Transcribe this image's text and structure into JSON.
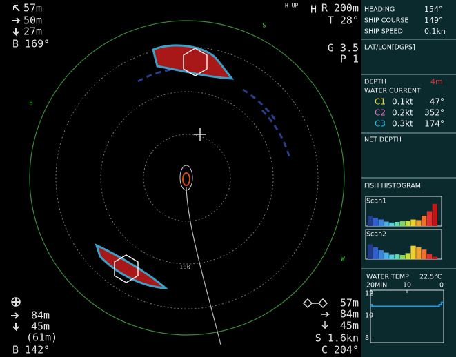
{
  "sonar": {
    "top_left": [
      "57m",
      "50m",
      "27m",
      "B 169°"
    ],
    "mode": "H-UP",
    "heading_mark": "H",
    "top_right": [
      "R 200m",
      "T 28°",
      "G 3.5",
      "P 1"
    ],
    "ring_labels": [
      "S",
      "E",
      "W",
      "100"
    ],
    "bottom_left": [
      "84m",
      "45m",
      "(61m)",
      "B 142°"
    ],
    "bottom_right": [
      "57m",
      "84m",
      "45m",
      "S 1.6kn",
      "C 204°"
    ]
  },
  "panel": {
    "ship": [
      {
        "label": "HEADING",
        "value": "154°"
      },
      {
        "label": "SHIP COURSE",
        "value": "149°"
      },
      {
        "label": "SHIP SPEED",
        "value": "0.1kn"
      }
    ],
    "position_label": "LAT/LON[DGPS]",
    "depth": {
      "label": "DEPTH",
      "value": "4m",
      "color": "#e03030"
    },
    "current_label": "WATER CURRENT",
    "currents": [
      {
        "name": "C1",
        "speed": "0.1kt",
        "direction": "47°",
        "color": "#e8d830"
      },
      {
        "name": "C2",
        "speed": "0.2kt",
        "direction": "352°",
        "color": "#e070c0"
      },
      {
        "name": "C3",
        "speed": "0.3kt",
        "direction": "174°",
        "color": "#30b8e0"
      }
    ],
    "net_depth_label": "NET DEPTH",
    "histogram": {
      "title": "FISH HISTOGRAM",
      "ylim": [
        0,
        1
      ],
      "colors": [
        "#223a8c",
        "#2f5fd0",
        "#3a86e0",
        "#4ab0e8",
        "#56d0e0",
        "#60d8b0",
        "#88d860",
        "#c8e040",
        "#f0d030",
        "#f0a030",
        "#f07030",
        "#e03030",
        "#c01818"
      ],
      "scans": [
        {
          "name": "Scan1",
          "values": [
            0.35,
            0.28,
            0.22,
            0.15,
            0.12,
            0.14,
            0.16,
            0.18,
            0.22,
            0.2,
            0.35,
            0.5,
            0.75
          ]
        },
        {
          "name": "Scan2",
          "values": [
            0.5,
            0.4,
            0.3,
            0.22,
            0.15,
            0.16,
            0.14,
            0.2,
            0.45,
            0.4,
            0.32,
            0.18,
            0.08
          ]
        }
      ]
    },
    "water_temp": {
      "type": "line",
      "title": "WATER TEMP",
      "value": "22.5°C",
      "color": "#1e9de0",
      "x": [
        20,
        19.6,
        19.6,
        1.2,
        1.2,
        0.6,
        0.6,
        0
      ],
      "values": [
        11.0,
        11.0,
        10.85,
        10.85,
        11.0,
        11.0,
        11.2,
        11.2
      ],
      "xlim": [
        20,
        0
      ],
      "xticks": [
        {
          "value": 20,
          "label": "20MIN"
        },
        10,
        0
      ],
      "ylim": [
        7.6,
        12.3
      ],
      "yticks": [
        12,
        10,
        8
      ]
    }
  }
}
